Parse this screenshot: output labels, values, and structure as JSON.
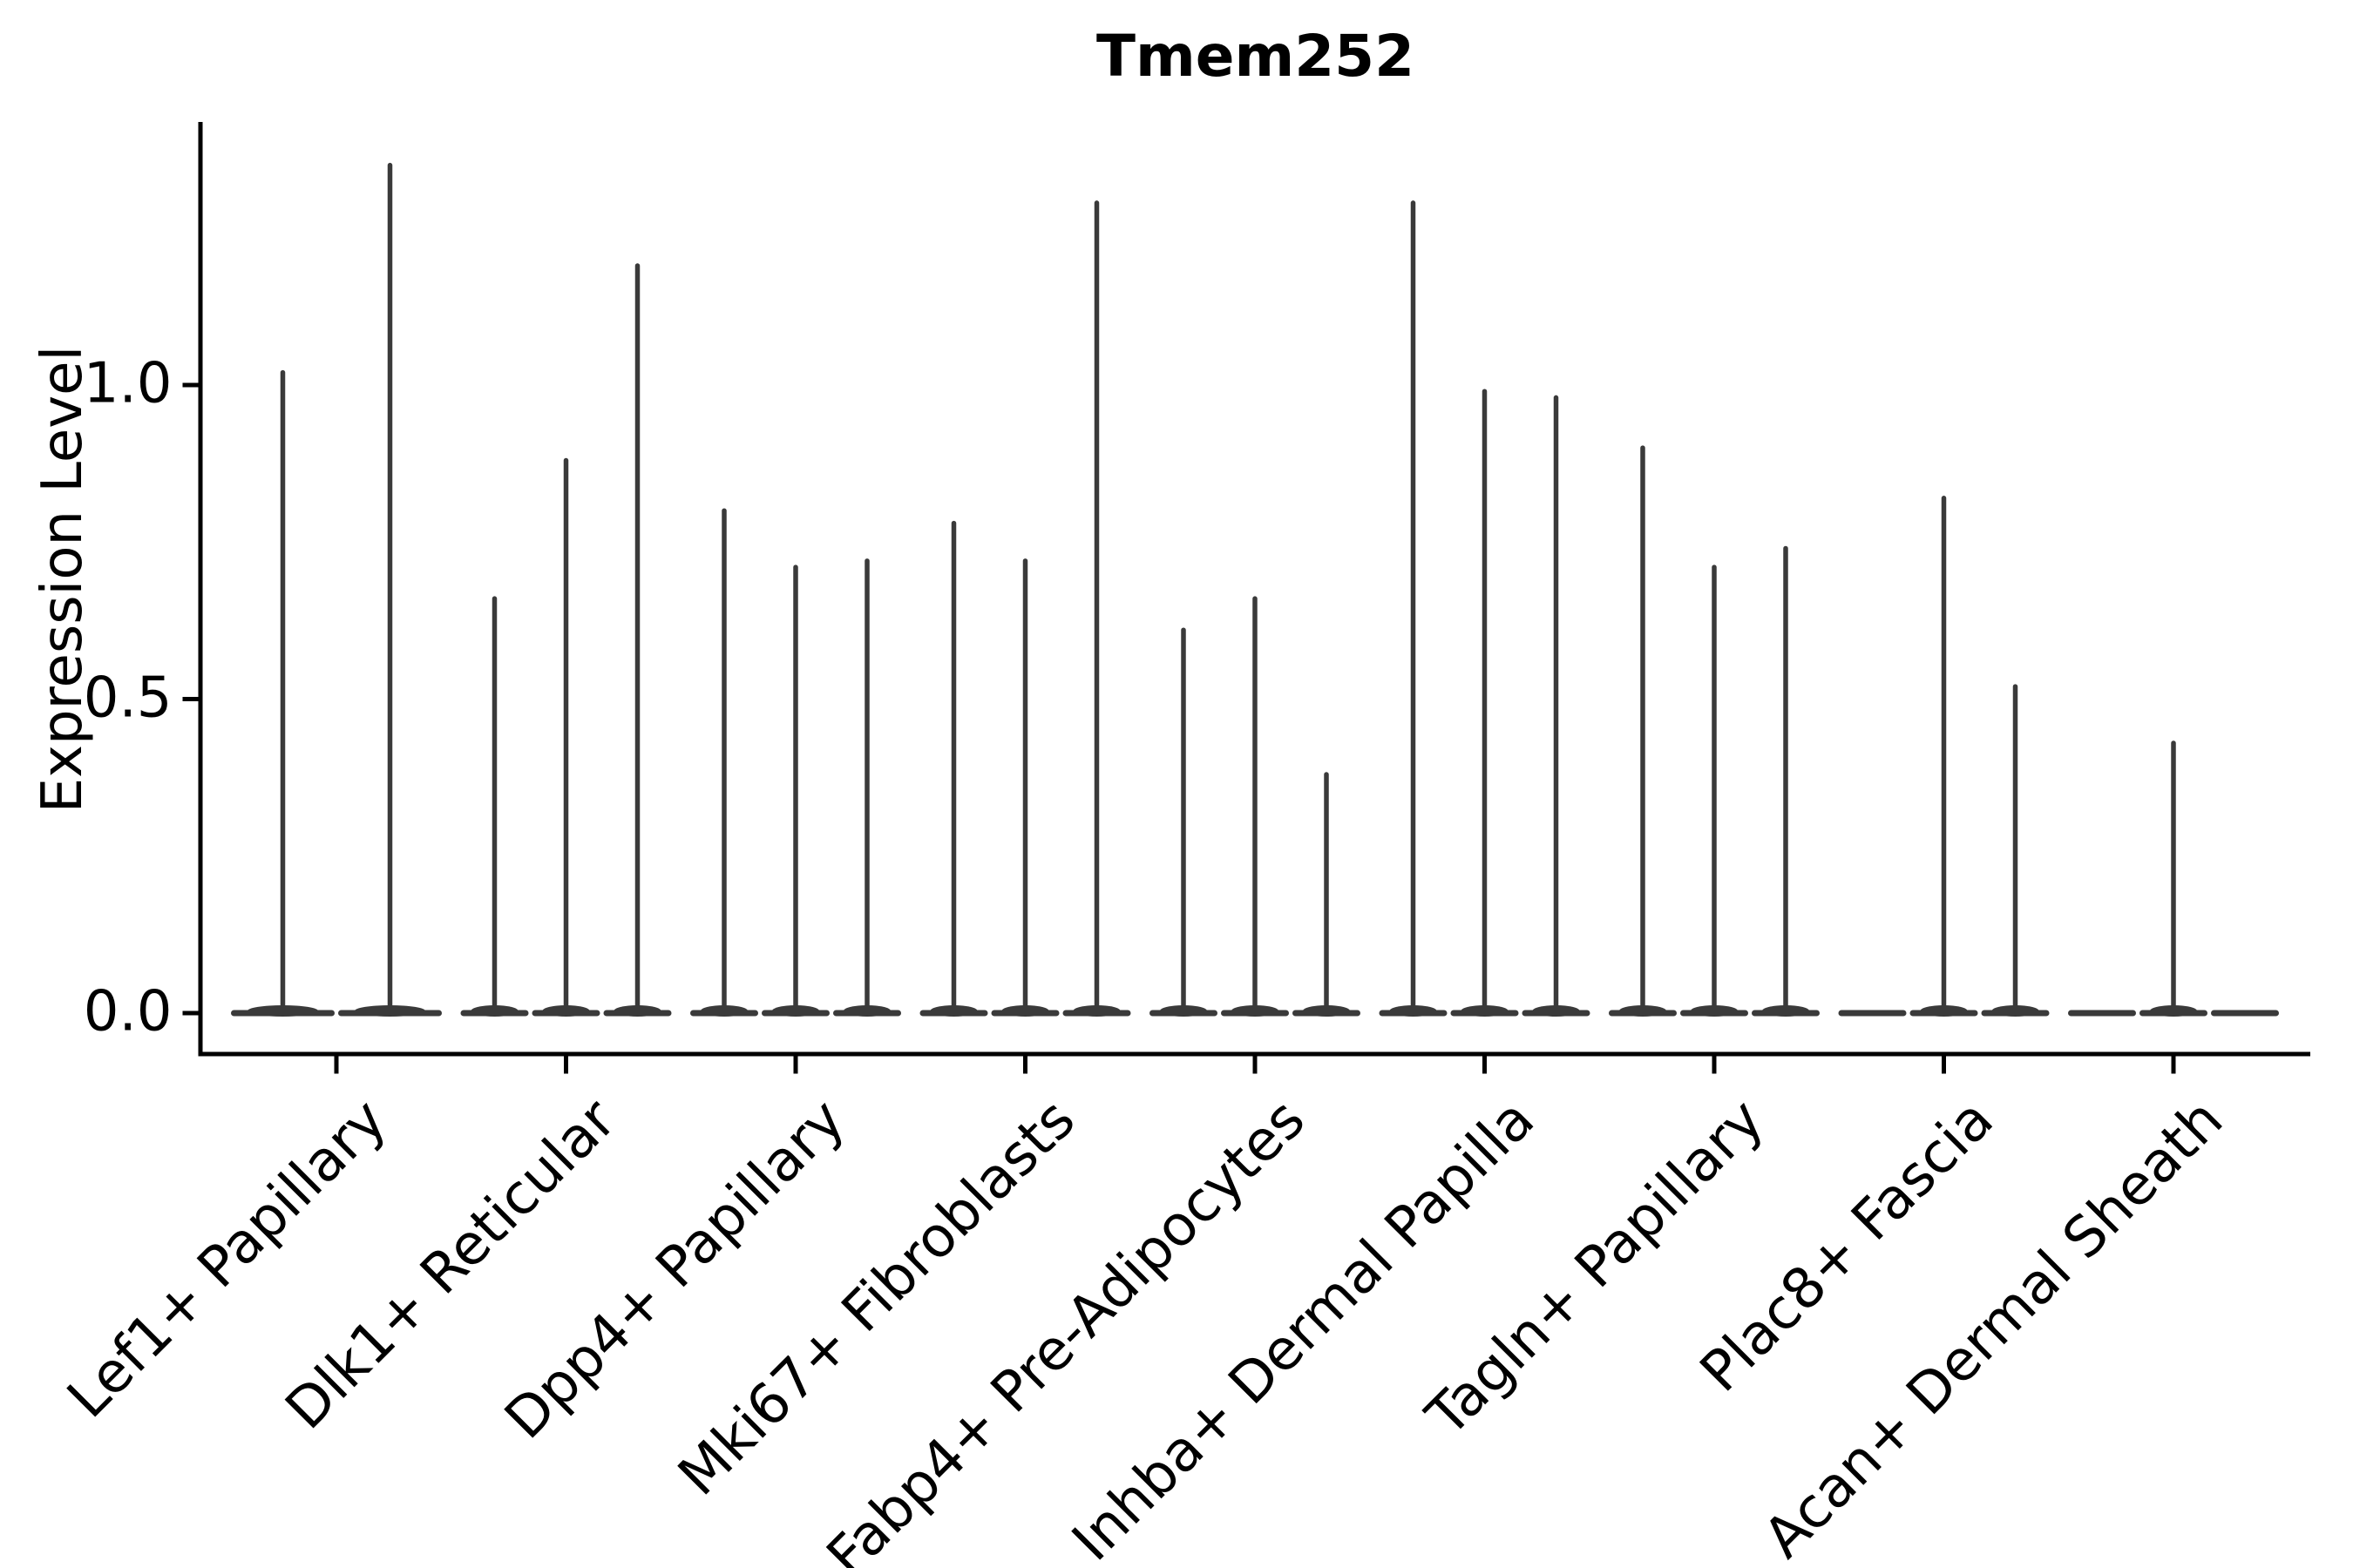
{
  "figure": {
    "title": "Tmem252",
    "ylabel": "Expression Level",
    "background_color": "#ffffff",
    "text_color": "#000000",
    "violin_color": "#3a3a3a",
    "spine_color": "#000000"
  },
  "y_axis": {
    "tick_labels": [
      "0.0",
      "0.5",
      "1.0"
    ],
    "tick_values": [
      0.0,
      0.5,
      1.0
    ]
  },
  "chart_data": {
    "type": "violin",
    "title": "Tmem252",
    "xlabel": "",
    "ylabel": "Expression Level",
    "ylim": [
      -0.07,
      1.42
    ],
    "yticks": [
      0.0,
      0.5,
      1.0
    ],
    "grid": false,
    "legend": false,
    "style": "zero-inflated violins: wide flat body at 0 with thin density spike up to the max expression value; 2-3 violins per category group",
    "categories": [
      "Lef1+ Papillary",
      "Dlk1+ Reticular",
      "Dpp4+ Papillary",
      "Mki67+ Fibroblasts",
      "Fabp4+ Pre-Adipocytes",
      "Inhba+ Dermal Papilla",
      "Tagln+ Papillary",
      "Plac8+ Fascia",
      "Acan+ Dermal Sheath"
    ],
    "groups": [
      {
        "category": "Lef1+ Papillary",
        "spike_heights": [
          1.02,
          1.35
        ]
      },
      {
        "category": "Dlk1+ Reticular",
        "spike_heights": [
          0.66,
          0.88,
          1.19
        ]
      },
      {
        "category": "Dpp4+ Papillary",
        "spike_heights": [
          0.8,
          0.71,
          0.72
        ]
      },
      {
        "category": "Mki67+ Fibroblasts",
        "spike_heights": [
          0.78,
          0.72,
          1.29
        ]
      },
      {
        "category": "Fabp4+ Pre-Adipocytes",
        "spike_heights": [
          0.61,
          0.66,
          0.38
        ]
      },
      {
        "category": "Inhba+ Dermal Papilla",
        "spike_heights": [
          1.29,
          0.99,
          0.98
        ]
      },
      {
        "category": "Tagln+ Papillary",
        "spike_heights": [
          0.9,
          0.71,
          0.74
        ]
      },
      {
        "category": "Plac8+ Fascia",
        "spike_heights": [
          0.0,
          0.82,
          0.52
        ]
      },
      {
        "category": "Acan+ Dermal Sheath",
        "spike_heights": [
          0.0,
          0.43,
          0.0
        ]
      }
    ]
  }
}
